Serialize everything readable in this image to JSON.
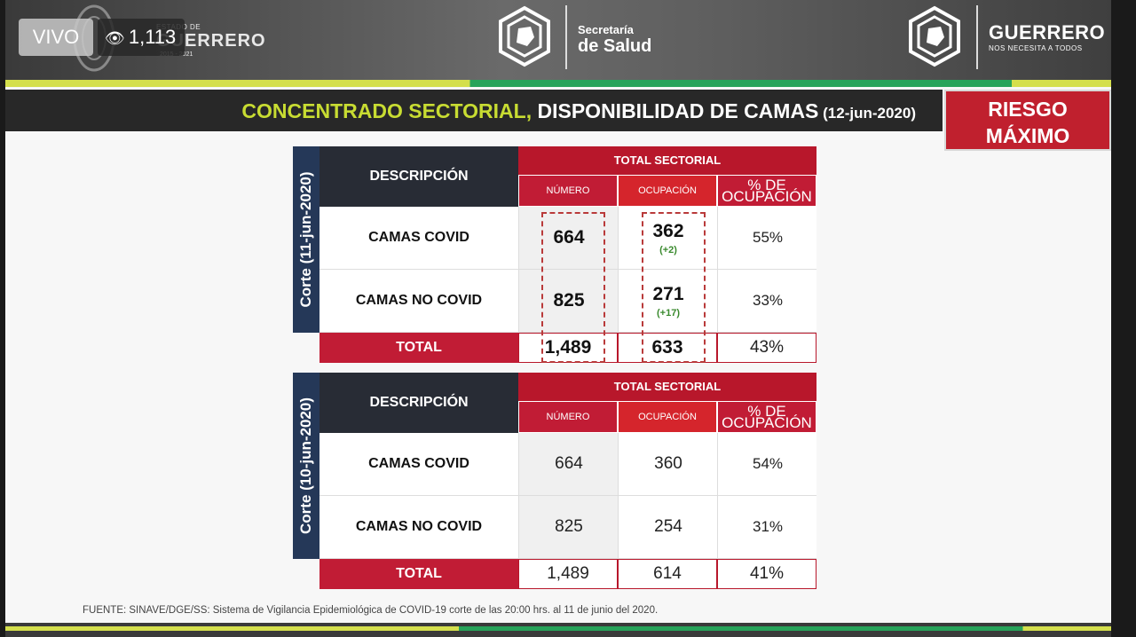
{
  "overlay": {
    "live_label": "VIVO",
    "viewers": "1,113"
  },
  "header": {
    "state_small": "ESTADO DE",
    "state_name": "GUERRERO",
    "state_years": "2015 - 2021",
    "secretaria_line1": "Secretaría",
    "secretaria_line2": "de Salud",
    "guerrero_name": "GUERRERO",
    "guerrero_slogan": "NOS NECESITA A TODOS"
  },
  "title": {
    "highlight": "CONCENTRADO SECTORIAL,",
    "rest": " DISPONIBILIDAD DE CAMAS",
    "date": " (12-jun-2020)"
  },
  "risk": {
    "line1": "RIESGO",
    "line2": "MÁXIMO"
  },
  "tables": [
    {
      "side_label": "Corte (11-jun-2020)",
      "desc_header": "DESCRIPCIÓN",
      "group_header": "TOTAL SECTORIAL",
      "col_numero": "NÚMERO",
      "col_ocupacion": "OCUPACIÓN",
      "col_pct_l1": "% DE",
      "col_pct_l2": "OCUPACIÓN",
      "rows": [
        {
          "label": "CAMAS COVID",
          "numero": "664",
          "ocupacion": "362",
          "delta": "(+2)",
          "pct": "55%"
        },
        {
          "label": "CAMAS NO COVID",
          "numero": "825",
          "ocupacion": "271",
          "delta": "(+17)",
          "pct": "33%"
        }
      ],
      "total": {
        "label": "TOTAL",
        "numero": "1,489",
        "ocupacion": "633",
        "pct": "43%"
      }
    },
    {
      "side_label": "Corte (10-jun-2020)",
      "desc_header": "DESCRIPCIÓN",
      "group_header": "TOTAL SECTORIAL",
      "col_numero": "NÚMERO",
      "col_ocupacion": "OCUPACIÓN",
      "col_pct_l1": "% DE",
      "col_pct_l2": "OCUPACIÓN",
      "rows": [
        {
          "label": "CAMAS COVID",
          "numero": "664",
          "ocupacion": "360",
          "pct": "54%"
        },
        {
          "label": "CAMAS NO COVID",
          "numero": "825",
          "ocupacion": "254",
          "pct": "31%"
        }
      ],
      "total": {
        "label": "TOTAL",
        "numero": "1,489",
        "ocupacion": "614",
        "pct": "41%"
      }
    }
  ],
  "source": "FUENTE: SINAVE/DGE/SS: Sistema de Vigilancia Epidemiológica de COVID-19 corte de las 20:00 hrs. al 11 de junio del 2020."
}
